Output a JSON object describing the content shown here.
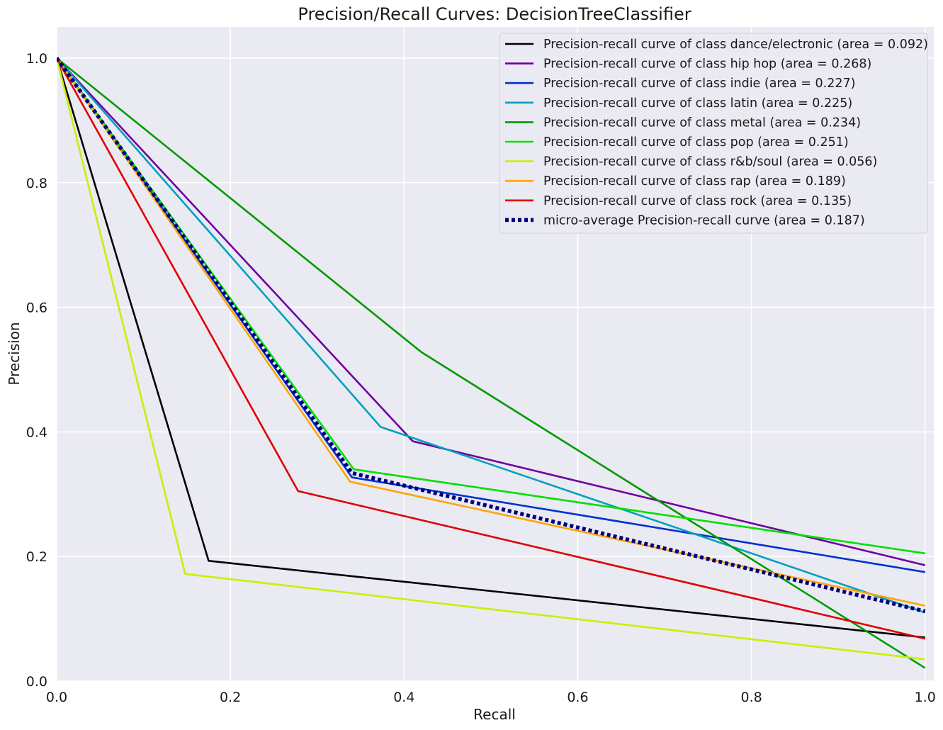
{
  "chart_data": {
    "type": "line",
    "title": "Precision/Recall Curves: DecisionTreeClassifier",
    "xlabel": "Recall",
    "ylabel": "Precision",
    "xlim": [
      0.0,
      1.01
    ],
    "ylim": [
      0.0,
      1.05
    ],
    "xticks": [
      0.0,
      0.2,
      0.4,
      0.6,
      0.8,
      1.0
    ],
    "yticks": [
      0.0,
      0.2,
      0.4,
      0.6,
      0.8,
      1.0
    ],
    "xtick_labels": [
      "0.0",
      "0.2",
      "0.4",
      "0.6",
      "0.8",
      "1.0"
    ],
    "ytick_labels": [
      "0.0",
      "0.2",
      "0.4",
      "0.6",
      "0.8",
      "1.0"
    ],
    "grid": true,
    "legend_position": "top-right",
    "background": "#eaeaf2",
    "series": [
      {
        "name": "Precision-recall curve of class dance/electronic (area = 0.092)",
        "color": "#000000",
        "style": "solid",
        "x": [
          0.0,
          0.175,
          1.0
        ],
        "y": [
          1.0,
          0.193,
          0.07
        ]
      },
      {
        "name": "Precision-recall curve of class hip hop (area = 0.268)",
        "color": "#7000a0",
        "style": "solid",
        "x": [
          0.0,
          0.41,
          1.0
        ],
        "y": [
          1.0,
          0.385,
          0.186
        ]
      },
      {
        "name": "Precision-recall curve of class indie (area = 0.227)",
        "color": "#0030d0",
        "style": "solid",
        "x": [
          0.0,
          0.34,
          1.0
        ],
        "y": [
          1.0,
          0.327,
          0.175
        ]
      },
      {
        "name": "Precision-recall curve of class latin (area = 0.225)",
        "color": "#00a0c0",
        "style": "solid",
        "x": [
          0.0,
          0.373,
          1.0
        ],
        "y": [
          1.0,
          0.408,
          0.11
        ]
      },
      {
        "name": "Precision-recall curve of class metal (area = 0.234)",
        "color": "#009a00",
        "style": "solid",
        "x": [
          0.0,
          0.42,
          1.0
        ],
        "y": [
          1.0,
          0.528,
          0.021
        ]
      },
      {
        "name": "Precision-recall curve of class pop (area = 0.251)",
        "color": "#00e000",
        "style": "solid",
        "x": [
          0.0,
          0.342,
          1.0
        ],
        "y": [
          1.0,
          0.34,
          0.205
        ]
      },
      {
        "name": "Precision-recall curve of class r&b/soul (area = 0.056)",
        "color": "#c8f000",
        "style": "solid",
        "x": [
          0.0,
          0.148,
          1.0
        ],
        "y": [
          1.0,
          0.172,
          0.035
        ]
      },
      {
        "name": "Precision-recall curve of class rap (area = 0.189)",
        "color": "#ffa500",
        "style": "solid",
        "x": [
          0.0,
          0.338,
          1.0
        ],
        "y": [
          1.0,
          0.32,
          0.121
        ]
      },
      {
        "name": "Precision-recall curve of class rock (area = 0.135)",
        "color": "#e00000",
        "style": "solid",
        "x": [
          0.0,
          0.278,
          1.0
        ],
        "y": [
          1.0,
          0.305,
          0.068
        ]
      },
      {
        "name": "micro-average Precision-recall curve (area = 0.187)",
        "color": "#000080",
        "style": "dotted",
        "x": [
          0.0,
          0.34,
          1.0
        ],
        "y": [
          1.0,
          0.334,
          0.112
        ]
      }
    ]
  }
}
